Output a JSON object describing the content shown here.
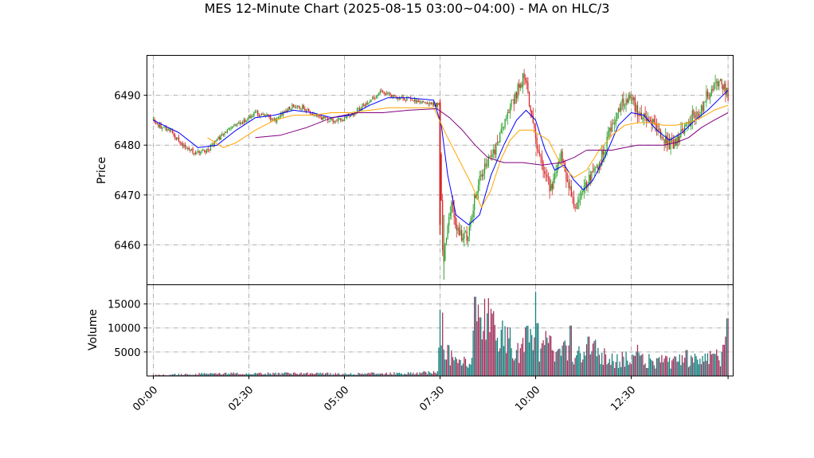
{
  "chart_data": {
    "type": "candlestick",
    "title": "MES 12-Minute Chart (2025-08-15 03:00~04:00) - MA on HLC/3",
    "price_panel": {
      "ylabel": "Price",
      "ylim": [
        6452,
        6498
      ],
      "yticks": [
        6460,
        6470,
        6480,
        6490
      ],
      "grid": true
    },
    "volume_panel": {
      "ylabel": "Volume",
      "ylim": [
        0,
        19000
      ],
      "yticks": [
        5000,
        10000,
        15000
      ],
      "grid": true
    },
    "xlim": [
      -10,
      910
    ],
    "xticks": [
      {
        "label": "00:00",
        "minute": 0
      },
      {
        "label": "02:30",
        "minute": 150
      },
      {
        "label": "05:00",
        "minute": 300
      },
      {
        "label": "07:30",
        "minute": 450
      },
      {
        "label": "10:00",
        "minute": 600
      },
      {
        "label": "12:30",
        "minute": 750
      }
    ],
    "colors": {
      "up": "#2ca02c",
      "down": "#d62728",
      "vol_up": "#17807e",
      "vol_down": "#a0335c",
      "ma_short": "#0000ff",
      "ma_mid": "#ffa500",
      "ma_long": "#800080",
      "grid": "#b0b0b0"
    },
    "price_path": [
      [
        0,
        6485
      ],
      [
        8,
        6484
      ],
      [
        25,
        6483
      ],
      [
        40,
        6481
      ],
      [
        55,
        6479
      ],
      [
        70,
        6478.5
      ],
      [
        85,
        6479
      ],
      [
        100,
        6481
      ],
      [
        115,
        6483
      ],
      [
        130,
        6484
      ],
      [
        145,
        6485
      ],
      [
        160,
        6486.5
      ],
      [
        175,
        6486
      ],
      [
        190,
        6485
      ],
      [
        205,
        6486.5
      ],
      [
        220,
        6488
      ],
      [
        235,
        6487.5
      ],
      [
        250,
        6486
      ],
      [
        265,
        6485.5
      ],
      [
        280,
        6485
      ],
      [
        295,
        6485
      ],
      [
        310,
        6486
      ],
      [
        325,
        6487.5
      ],
      [
        340,
        6489
      ],
      [
        355,
        6490.5
      ],
      [
        368,
        6490
      ],
      [
        448,
        6488
      ],
      [
        451,
        6472
      ],
      [
        455,
        6456
      ],
      [
        460,
        6462
      ],
      [
        468,
        6469
      ],
      [
        476,
        6463
      ],
      [
        485,
        6461.5
      ],
      [
        495,
        6462
      ],
      [
        505,
        6470
      ],
      [
        515,
        6474
      ],
      [
        525,
        6477
      ],
      [
        535,
        6479
      ],
      [
        545,
        6483
      ],
      [
        555,
        6486
      ],
      [
        565,
        6489
      ],
      [
        575,
        6492
      ],
      [
        583,
        6494
      ],
      [
        588,
        6490
      ],
      [
        595,
        6484
      ],
      [
        602,
        6480
      ],
      [
        610,
        6477
      ],
      [
        618,
        6473
      ],
      [
        625,
        6471
      ],
      [
        632,
        6475
      ],
      [
        640,
        6479
      ],
      [
        648,
        6474
      ],
      [
        655,
        6470
      ],
      [
        662,
        6467
      ],
      [
        670,
        6469
      ],
      [
        680,
        6472
      ],
      [
        690,
        6474
      ],
      [
        700,
        6476
      ],
      [
        710,
        6480
      ],
      [
        720,
        6484
      ],
      [
        730,
        6487
      ],
      [
        740,
        6489
      ],
      [
        750,
        6490
      ],
      [
        755,
        6488
      ],
      [
        762,
        6486
      ],
      [
        772,
        6485
      ],
      [
        782,
        6485
      ],
      [
        792,
        6483
      ],
      [
        802,
        6481
      ],
      [
        810,
        6480
      ],
      [
        822,
        6481
      ],
      [
        835,
        6484
      ],
      [
        848,
        6486
      ],
      [
        860,
        6487
      ],
      [
        868,
        6490
      ],
      [
        875,
        6490
      ],
      [
        882,
        6492
      ],
      [
        888,
        6493
      ],
      [
        895,
        6492
      ],
      [
        902,
        6490
      ]
    ],
    "volume_levels": [
      [
        0,
        200
      ],
      [
        100,
        500
      ],
      [
        200,
        500
      ],
      [
        300,
        450
      ],
      [
        400,
        550
      ],
      [
        447,
        700
      ],
      [
        450,
        13500
      ],
      [
        458,
        6000
      ],
      [
        470,
        3500
      ],
      [
        480,
        3000
      ],
      [
        495,
        2500
      ],
      [
        505,
        9000
      ],
      [
        520,
        14000
      ],
      [
        535,
        7000
      ],
      [
        550,
        8500
      ],
      [
        565,
        6500
      ],
      [
        580,
        5500
      ],
      [
        590,
        9000
      ],
      [
        600,
        5500
      ],
      [
        610,
        7000
      ],
      [
        620,
        6500
      ],
      [
        630,
        5000
      ],
      [
        640,
        6500
      ],
      [
        655,
        4000
      ],
      [
        670,
        4500
      ],
      [
        685,
        6500
      ],
      [
        700,
        4000
      ],
      [
        715,
        3500
      ],
      [
        730,
        3500
      ],
      [
        750,
        4000
      ],
      [
        770,
        3000
      ],
      [
        790,
        3200
      ],
      [
        810,
        2800
      ],
      [
        830,
        3000
      ],
      [
        850,
        3000
      ],
      [
        870,
        3500
      ],
      [
        890,
        4000
      ],
      [
        902,
        5000
      ]
    ],
    "volume_spikes": [
      [
        450,
        13800
      ],
      [
        454,
        13200
      ],
      [
        505,
        16500
      ],
      [
        513,
        12200
      ],
      [
        530,
        14000
      ],
      [
        534,
        13500
      ],
      [
        592,
        9800
      ],
      [
        601,
        17500
      ],
      [
        603,
        11000
      ],
      [
        610,
        6800
      ],
      [
        655,
        10500
      ],
      [
        683,
        8200
      ],
      [
        760,
        6500
      ],
      [
        837,
        5400
      ],
      [
        895,
        6500
      ],
      [
        901,
        12000
      ],
      [
        898,
        8200
      ]
    ],
    "ma_short": [
      [
        0,
        6485
      ],
      [
        40,
        6482.5
      ],
      [
        70,
        6479.5
      ],
      [
        100,
        6480
      ],
      [
        130,
        6483
      ],
      [
        160,
        6485.5
      ],
      [
        190,
        6486
      ],
      [
        220,
        6487
      ],
      [
        250,
        6486.5
      ],
      [
        280,
        6485.5
      ],
      [
        310,
        6486
      ],
      [
        340,
        6488
      ],
      [
        368,
        6489.5
      ],
      [
        400,
        6489.5
      ],
      [
        440,
        6489
      ],
      [
        452,
        6484
      ],
      [
        462,
        6474
      ],
      [
        475,
        6466
      ],
      [
        495,
        6464
      ],
      [
        512,
        6466
      ],
      [
        530,
        6474
      ],
      [
        550,
        6480
      ],
      [
        570,
        6485
      ],
      [
        585,
        6487
      ],
      [
        600,
        6485
      ],
      [
        615,
        6479
      ],
      [
        630,
        6475
      ],
      [
        645,
        6476
      ],
      [
        660,
        6473
      ],
      [
        675,
        6471
      ],
      [
        690,
        6473
      ],
      [
        710,
        6478
      ],
      [
        730,
        6484
      ],
      [
        750,
        6486.5
      ],
      [
        770,
        6486
      ],
      [
        790,
        6483
      ],
      [
        810,
        6481
      ],
      [
        830,
        6482.5
      ],
      [
        850,
        6485
      ],
      [
        870,
        6487
      ],
      [
        890,
        6489.5
      ],
      [
        902,
        6491
      ]
    ],
    "ma_mid": [
      [
        85,
        6481.5
      ],
      [
        110,
        6479.5
      ],
      [
        130,
        6480.5
      ],
      [
        160,
        6483
      ],
      [
        190,
        6485
      ],
      [
        220,
        6486
      ],
      [
        250,
        6486
      ],
      [
        280,
        6486.5
      ],
      [
        310,
        6486.5
      ],
      [
        340,
        6487
      ],
      [
        370,
        6487.5
      ],
      [
        440,
        6487.5
      ],
      [
        460,
        6482
      ],
      [
        480,
        6477
      ],
      [
        500,
        6472
      ],
      [
        515,
        6467.5
      ],
      [
        530,
        6471
      ],
      [
        545,
        6477
      ],
      [
        560,
        6481
      ],
      [
        575,
        6483
      ],
      [
        595,
        6483
      ],
      [
        620,
        6481
      ],
      [
        640,
        6476
      ],
      [
        660,
        6473.5
      ],
      [
        680,
        6475
      ],
      [
        700,
        6479
      ],
      [
        720,
        6482
      ],
      [
        740,
        6484
      ],
      [
        760,
        6484.5
      ],
      [
        780,
        6484.5
      ],
      [
        800,
        6484
      ],
      [
        820,
        6484
      ],
      [
        840,
        6484.5
      ],
      [
        860,
        6485.5
      ],
      [
        880,
        6487
      ],
      [
        902,
        6488
      ]
    ],
    "ma_long": [
      [
        160,
        6481.5
      ],
      [
        200,
        6482
      ],
      [
        240,
        6483.5
      ],
      [
        280,
        6485.5
      ],
      [
        320,
        6486.5
      ],
      [
        360,
        6486.5
      ],
      [
        400,
        6487
      ],
      [
        445,
        6487.3
      ],
      [
        465,
        6485.5
      ],
      [
        485,
        6483
      ],
      [
        505,
        6480
      ],
      [
        525,
        6477.5
      ],
      [
        550,
        6476.5
      ],
      [
        580,
        6476.5
      ],
      [
        610,
        6476
      ],
      [
        640,
        6476.5
      ],
      [
        660,
        6477.5
      ],
      [
        680,
        6479
      ],
      [
        700,
        6479
      ],
      [
        720,
        6479
      ],
      [
        740,
        6479.5
      ],
      [
        760,
        6480
      ],
      [
        780,
        6480
      ],
      [
        800,
        6480
      ],
      [
        820,
        6480.5
      ],
      [
        840,
        6481.5
      ],
      [
        860,
        6483.5
      ],
      [
        880,
        6485
      ],
      [
        902,
        6486.5
      ]
    ]
  }
}
